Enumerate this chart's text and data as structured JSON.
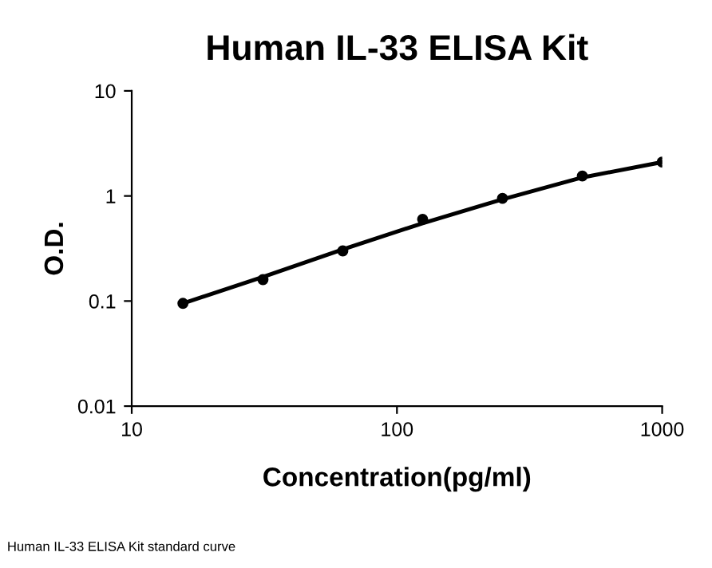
{
  "chart_data": {
    "type": "scatter",
    "title": "Human IL-33 ELISA Kit",
    "xlabel": "Concentration(pg/ml)",
    "ylabel": "O.D.",
    "log": "xy",
    "xlim": [
      10,
      1000
    ],
    "ylim": [
      0.01,
      10
    ],
    "xticks": [
      10,
      100,
      1000
    ],
    "yticks": [
      0.01,
      0.1,
      1,
      10
    ],
    "grid": false,
    "legend": false,
    "marker": "circle",
    "series": [
      {
        "color": "#000000",
        "x": [
          15.6,
          31.25,
          62.5,
          125,
          250,
          500,
          1000
        ],
        "values": [
          0.095,
          0.16,
          0.3,
          0.6,
          0.95,
          1.55,
          2.1
        ]
      },
      {
        "type": "line",
        "color": "#000000",
        "line_style": "solid",
        "marker": "none",
        "x": [
          15.6,
          31.25,
          62.5,
          125,
          250,
          500,
          1000
        ],
        "values": [
          0.095,
          0.17,
          0.31,
          0.55,
          0.93,
          1.5,
          2.1
        ]
      }
    ],
    "annotations": [
      "Human IL-33 ELISA Kit standard curve"
    ]
  }
}
